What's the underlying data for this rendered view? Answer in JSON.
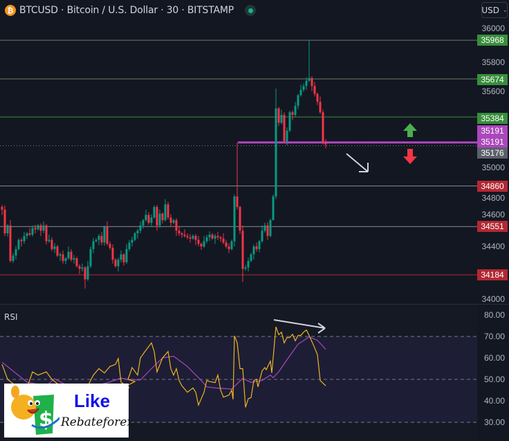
{
  "header": {
    "symbol_icon": "bitcoin-icon",
    "title": "BTCUSD · Bitcoin / U.S. Dollar · 30 · BITSTAMP",
    "status": "market-open-dot",
    "currency": "USD"
  },
  "price_axis": {
    "ticks": [
      "36000",
      "35800",
      "35600",
      "35000",
      "34800",
      "34600",
      "34400",
      "34000"
    ],
    "tick_values": [
      36000,
      35800,
      35600,
      35000,
      34800,
      34600,
      34400,
      34000
    ]
  },
  "levels": [
    {
      "label": "35968",
      "value": 35968,
      "color": "#388e3c",
      "line": "#6b7a6b"
    },
    {
      "label": "35674",
      "value": 35674,
      "color": "#388e3c",
      "line": "#6b7a6b"
    },
    {
      "label": "35384",
      "value": 35384,
      "color": "#388e3c",
      "line": "#388e3c"
    },
    {
      "label": "35191",
      "value": 35191,
      "color": "#ab47bc",
      "line": "#ab47bc"
    },
    {
      "label": "35191",
      "value": 35191,
      "color": "#ab47bc",
      "line": null
    },
    {
      "label": "35176",
      "value": 35176,
      "color": "#5d606b",
      "line": "dotted"
    },
    {
      "label": "34860",
      "value": 34860,
      "color": "#b22833",
      "line": "#8a8d95"
    },
    {
      "label": "34551",
      "value": 34551,
      "color": "#b22833",
      "line": "#8a8d95"
    },
    {
      "label": "34184",
      "value": 34184,
      "color": "#b22833",
      "line": "#b22833"
    }
  ],
  "colors": {
    "up": "#089981",
    "down": "#f23645",
    "rsi": "#f0b323",
    "rsi_ma": "#ab47bc",
    "background": "#131722"
  },
  "chart_data": {
    "type": "candlestick",
    "closes": [
      34680,
      34500,
      34560,
      34290,
      34330,
      34380,
      34450,
      34440,
      34480,
      34500,
      34490,
      34540,
      34530,
      34560,
      34520,
      34560,
      34440,
      34450,
      34380,
      34400,
      34330,
      34340,
      34290,
      34310,
      34360,
      34300,
      34310,
      34250,
      34230,
      34240,
      34150,
      34250,
      34380,
      34440,
      34450,
      34480,
      34430,
      34550,
      34420,
      34390,
      34300,
      34250,
      34300,
      34340,
      34280,
      34380,
      34430,
      34450,
      34500,
      34520,
      34560,
      34600,
      34640,
      34580,
      34620,
      34700,
      34560,
      34650,
      34600,
      34720,
      34620,
      34580,
      34600,
      34520,
      34500,
      34490,
      34480,
      34470,
      34460,
      34480,
      34450,
      34420,
      34400,
      34440,
      34470,
      34490,
      34460,
      34480,
      34470,
      34460,
      34430,
      34400,
      34380,
      34440,
      34780,
      34700,
      34520,
      34230,
      34240,
      34290,
      34340,
      34400,
      34380,
      34440,
      34520,
      34560,
      34480,
      34600,
      34780,
      35450,
      35340,
      35400,
      35200,
      35280,
      35420,
      35400,
      35470,
      35550,
      35590,
      35620,
      35660,
      35680,
      35620,
      35560,
      35500,
      35420,
      35190,
      35176
    ],
    "first_open": 34700,
    "high_overrides": {
      "85": 35191,
      "111": 35968,
      "99": 35600
    },
    "low_overrides": {
      "30": 34080,
      "87": 34130,
      "98": 34760
    },
    "ylim": [
      34000,
      36000
    ],
    "rsi": {
      "label": "RSI",
      "ticks": [
        "80.00",
        "70.00",
        "60.00",
        "50.00",
        "40.00",
        "30.00"
      ],
      "levels": [
        70,
        50,
        30
      ],
      "ylim": [
        30,
        80
      ],
      "values": [
        [
          0,
          57
        ],
        [
          2,
          50
        ],
        [
          5,
          47
        ],
        [
          9,
          46
        ],
        [
          11,
          53.5
        ],
        [
          13,
          52
        ],
        [
          16,
          53.5
        ],
        [
          18,
          50
        ],
        [
          22,
          46
        ],
        [
          26,
          44
        ],
        [
          31,
          47
        ],
        [
          33,
          52
        ],
        [
          35,
          55
        ],
        [
          37,
          53
        ],
        [
          39,
          56
        ],
        [
          41,
          57
        ],
        [
          42,
          59.7
        ],
        [
          43,
          48.7
        ],
        [
          46,
          46
        ],
        [
          45,
          47
        ],
        [
          48,
          49
        ],
        [
          45.5,
          50
        ],
        [
          47,
          55.5
        ],
        [
          49,
          52
        ],
        [
          50,
          60
        ],
        [
          52,
          63.6
        ],
        [
          54,
          67
        ],
        [
          55,
          63
        ],
        [
          56,
          53.5
        ],
        [
          58,
          60
        ],
        [
          60,
          63
        ],
        [
          61,
          55
        ],
        [
          62,
          52
        ],
        [
          63,
          55
        ],
        [
          64,
          49.5
        ],
        [
          65,
          47
        ],
        [
          67,
          44
        ],
        [
          69,
          46
        ],
        [
          70,
          44
        ],
        [
          71,
          38
        ],
        [
          73,
          44
        ],
        [
          74,
          49.5
        ],
        [
          75,
          49
        ],
        [
          77,
          48.5
        ],
        [
          78,
          52
        ],
        [
          79,
          45
        ],
        [
          80,
          41.7
        ],
        [
          82,
          42.7
        ],
        [
          83,
          45
        ],
        [
          83.5,
          40.7
        ],
        [
          84,
          70.3
        ],
        [
          85,
          67
        ],
        [
          86,
          55
        ],
        [
          87,
          55
        ],
        [
          88,
          37
        ],
        [
          89,
          41
        ],
        [
          90,
          41.5
        ],
        [
          91,
          49.5
        ],
        [
          92,
          50
        ],
        [
          92.5,
          46.5
        ],
        [
          94,
          54
        ],
        [
          95,
          55.5
        ],
        [
          95.5,
          54.5
        ],
        [
          97,
          58.5
        ],
        [
          97.5,
          53
        ],
        [
          99,
          74.5
        ],
        [
          100,
          70.8
        ],
        [
          101,
          72
        ],
        [
          102,
          67
        ],
        [
          103,
          69.5
        ],
        [
          104,
          69.5
        ],
        [
          105,
          71
        ],
        [
          106,
          68
        ],
        [
          107,
          70.5
        ],
        [
          108,
          70.5
        ],
        [
          109,
          72
        ],
        [
          110,
          73
        ],
        [
          111,
          70.5
        ],
        [
          113,
          64.7
        ],
        [
          114,
          61.5
        ],
        [
          115,
          49.5
        ],
        [
          117,
          47
        ]
      ],
      "ma_values": [
        [
          0,
          58
        ],
        [
          9,
          48.7
        ],
        [
          16,
          47
        ],
        [
          19,
          50.3
        ],
        [
          23,
          47.5
        ],
        [
          30,
          46
        ],
        [
          38,
          48.4
        ],
        [
          43,
          50.6
        ],
        [
          45.5,
          50
        ],
        [
          50,
          49.7
        ],
        [
          54,
          55
        ],
        [
          58,
          60
        ],
        [
          62,
          60.8
        ],
        [
          67,
          56
        ],
        [
          72,
          49.5
        ],
        [
          74,
          46.5
        ],
        [
          77,
          46
        ],
        [
          83,
          45.5
        ],
        [
          87,
          50.5
        ],
        [
          90,
          48.6
        ],
        [
          94,
          49.5
        ],
        [
          97,
          52
        ],
        [
          98,
          50.8
        ],
        [
          100,
          53.5
        ],
        [
          104,
          61
        ],
        [
          107,
          66.4
        ],
        [
          111,
          69.8
        ],
        [
          114,
          68.2
        ],
        [
          117,
          64
        ]
      ]
    }
  },
  "annotations": {
    "down_arrow_white": "arrow-down-right-icon",
    "up_arrow": "green-up-arrow-icon",
    "down_arrow": "red-down-arrow-icon",
    "rsi_divergence": "arrow-right-icon"
  },
  "logo": {
    "like": "Like",
    "brand": "Rebateforex"
  }
}
